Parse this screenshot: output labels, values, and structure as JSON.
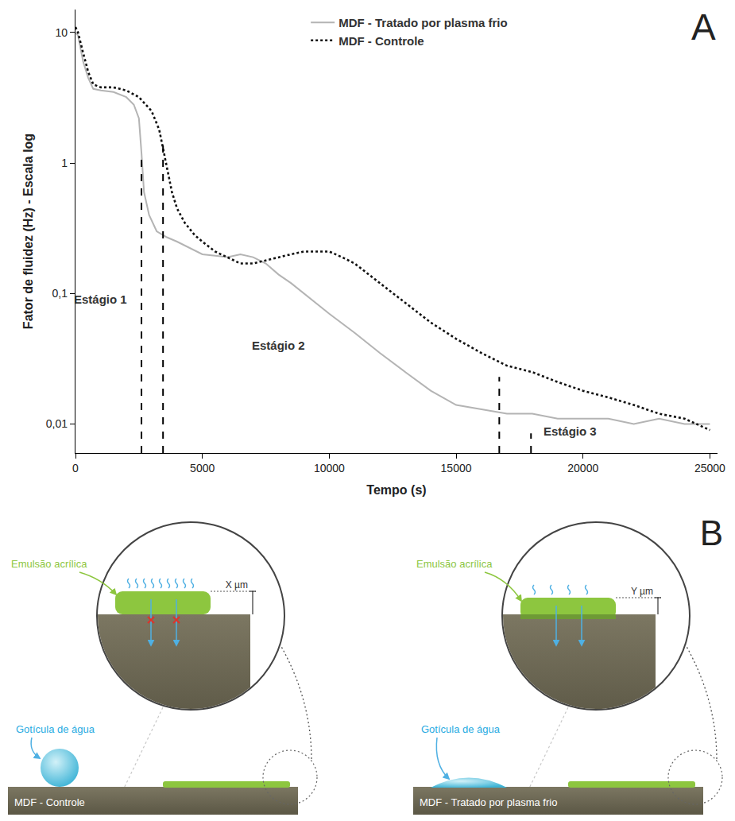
{
  "chart_data": {
    "type": "line",
    "panel": "A",
    "x_title": "Tempo (s)",
    "y_title": "Fator de fluidez (Hz) - Escala log",
    "log": "y",
    "grid": false,
    "legend": "top",
    "xlim": [
      0,
      25300
    ],
    "ylim": [
      0.006,
      15
    ],
    "xticks": [
      0,
      5000,
      10000,
      15000,
      20000,
      25000
    ],
    "yticks": [
      {
        "value": 0.01,
        "label": "0,01"
      },
      {
        "value": 0.1,
        "label": "0,1"
      },
      1,
      10
    ],
    "series": [
      {
        "name": "MDF - Tratado por plasma frio",
        "color": "#b4b4b4",
        "line_style": "solid",
        "x": [
          0,
          100,
          300,
          500,
          700,
          1000,
          1500,
          2000,
          2300,
          2500,
          2600,
          2700,
          2900,
          3200,
          3600,
          4000,
          5000,
          6000,
          6500,
          7000,
          7500,
          8000,
          8500,
          9000,
          10000,
          11000,
          12000,
          13000,
          14000,
          15000,
          16000,
          17000,
          18000,
          19000,
          20000,
          21000,
          22000,
          23000,
          24000,
          25000
        ],
        "values": [
          10,
          9.5,
          6,
          4.5,
          3.7,
          3.6,
          3.5,
          3.2,
          2.8,
          2.2,
          1.2,
          0.6,
          0.4,
          0.3,
          0.27,
          0.25,
          0.2,
          0.19,
          0.2,
          0.19,
          0.17,
          0.14,
          0.12,
          0.1,
          0.07,
          0.05,
          0.035,
          0.025,
          0.018,
          0.014,
          0.013,
          0.012,
          0.012,
          0.011,
          0.011,
          0.011,
          0.01,
          0.011,
          0.01,
          0.01
        ]
      },
      {
        "name": "MDF - Controle",
        "color": "#111111",
        "line_style": "dotted",
        "x": [
          0,
          100,
          300,
          500,
          700,
          1000,
          1500,
          2000,
          2500,
          3000,
          3300,
          3450,
          3600,
          3800,
          4000,
          4300,
          4700,
          5000,
          5500,
          6000,
          6500,
          7000,
          7500,
          8000,
          8500,
          9000,
          9500,
          10000,
          10500,
          11000,
          12000,
          13000,
          14000,
          15000,
          16000,
          17000,
          18000,
          19000,
          20000,
          21000,
          22000,
          23000,
          24000,
          25000
        ],
        "values": [
          11,
          10,
          7,
          5,
          4,
          3.8,
          3.8,
          3.6,
          3.2,
          2.5,
          1.8,
          1.3,
          0.9,
          0.6,
          0.45,
          0.35,
          0.28,
          0.25,
          0.21,
          0.19,
          0.17,
          0.17,
          0.18,
          0.19,
          0.2,
          0.21,
          0.21,
          0.21,
          0.19,
          0.17,
          0.12,
          0.085,
          0.06,
          0.045,
          0.035,
          0.028,
          0.025,
          0.021,
          0.018,
          0.016,
          0.014,
          0.012,
          0.011,
          0.009
        ]
      }
    ],
    "stage_lines": [
      {
        "x": 2600,
        "y": 1.1
      },
      {
        "x": 3450,
        "y": 1.4
      },
      {
        "x": 16700,
        "y": 0.023
      },
      {
        "x": 17950,
        "y": 0.0085
      }
    ],
    "annotations": [
      {
        "text": "Estágio 1",
        "x": 1000,
        "y": 0.09
      },
      {
        "text": "Estágio 2",
        "x": 8000,
        "y": 0.04
      },
      {
        "text": "Estágio 3",
        "x": 19500,
        "y": 0.0088
      }
    ]
  },
  "diagram": {
    "panel": "B",
    "panels": [
      {
        "emulsion_label": "Emulsão acrílica",
        "thickness_label": "X µm",
        "droplet_label": "Gotícula de água",
        "substrate_label": "MDF - Controle"
      },
      {
        "emulsion_label": "Emulsão acrílica",
        "thickness_label": "Y µm",
        "droplet_label": "Gotícula de água",
        "substrate_label": "MDF - Tratado por plasma frio"
      }
    ]
  }
}
